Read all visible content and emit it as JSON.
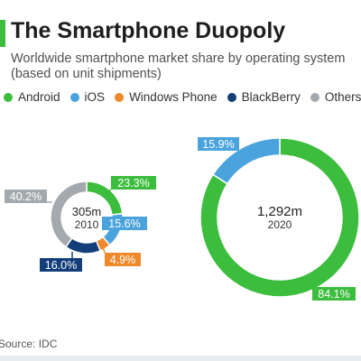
{
  "header": {
    "title": "The Smartphone Duopoly",
    "subtitle": "Worldwide smartphone market share by operating system (based on unit shipments)"
  },
  "legend": [
    {
      "label": "Android",
      "color": "#3dbd3d"
    },
    {
      "label": "iOS",
      "color": "#4aa3dc"
    },
    {
      "label": "Windows Phone",
      "color": "#ee8a2c"
    },
    {
      "label": "BlackBerry",
      "color": "#143e7a"
    },
    {
      "label": "Others",
      "color": "#a4a9ad"
    }
  ],
  "footer": {
    "source": "Source: IDC"
  },
  "chart_data": [
    {
      "type": "pie",
      "center_label": "305m",
      "center_sublabel": "2010",
      "categories": [
        "Android",
        "iOS",
        "Windows Phone",
        "BlackBerry",
        "Others"
      ],
      "values": [
        23.3,
        15.6,
        4.9,
        16.0,
        40.2
      ],
      "labels": [
        "23.3%",
        "15.6%",
        "4.9%",
        "16.0%",
        "40.2%"
      ],
      "colors": [
        "#3dbd3d",
        "#4aa3dc",
        "#ee8a2c",
        "#143e7a",
        "#a4a9ad"
      ]
    },
    {
      "type": "pie",
      "center_label": "1,292m",
      "center_sublabel": "2020",
      "categories": [
        "Android",
        "iOS"
      ],
      "values": [
        84.1,
        15.9
      ],
      "labels": [
        "84.1%",
        "15.9%"
      ],
      "colors": [
        "#3dbd3d",
        "#4aa3dc"
      ]
    }
  ]
}
